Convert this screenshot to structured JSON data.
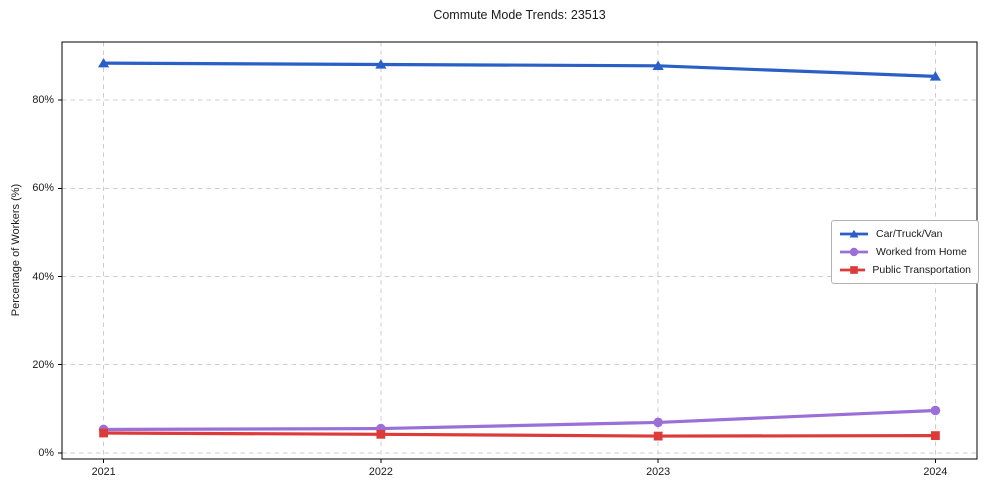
{
  "chart_data": {
    "type": "line",
    "title": "Commute Mode Trends: 23513",
    "xlabel": "",
    "ylabel": "Percentage of Workers (%)",
    "categories": [
      "2021",
      "2022",
      "2023",
      "2024"
    ],
    "series": [
      {
        "name": "Car/Truck/Van",
        "marker": "triangle",
        "color": "#2a5fc6",
        "values": [
          88.4,
          88.1,
          87.8,
          85.4
        ]
      },
      {
        "name": "Worked from Home",
        "marker": "circle",
        "color": "#9a6fd8",
        "values": [
          5.3,
          5.5,
          6.9,
          9.6
        ]
      },
      {
        "name": "Public Transportation",
        "marker": "square",
        "color": "#dd3a3a",
        "values": [
          4.5,
          4.2,
          3.8,
          3.9
        ]
      }
    ],
    "yticks": [
      0,
      20,
      40,
      60,
      80
    ],
    "ytick_labels": [
      "0%",
      "20%",
      "40%",
      "60%",
      "80%"
    ],
    "ylim": [
      -1.4,
      93.2
    ],
    "grid": true,
    "grid_style": "dashed",
    "grid_color": "#cdcdcd",
    "legend_position": "center right",
    "spine_color": "#000000"
  }
}
